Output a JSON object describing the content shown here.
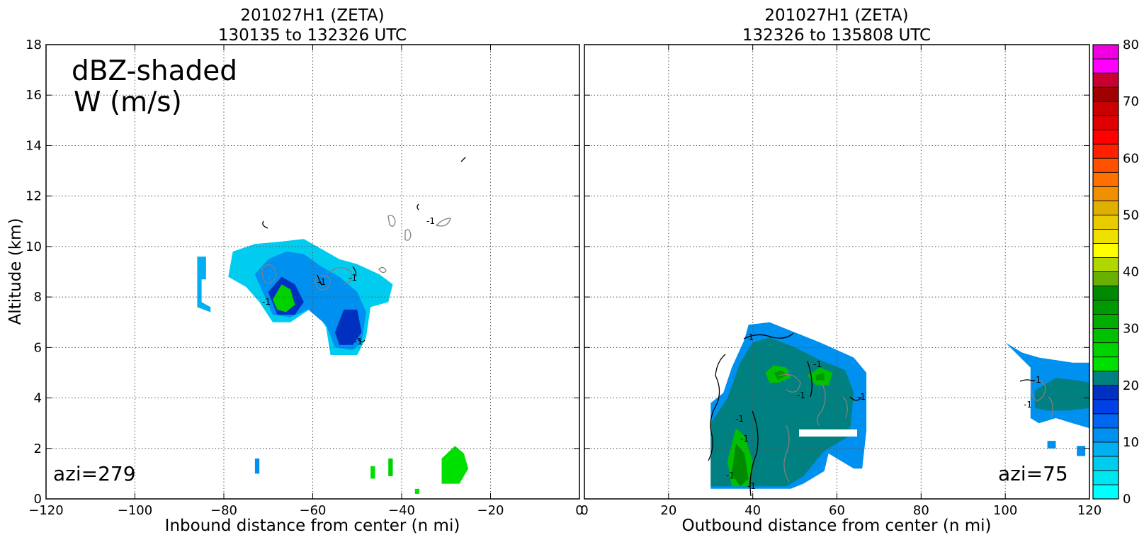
{
  "chart_data": [
    {
      "type": "heatmap",
      "title": "201027H1 (ZETA)",
      "subtitle": "130135 to 132326 UTC",
      "xlabel": "Inbound distance from center (n mi)",
      "ylabel": "Altitude (km)",
      "xlim": [
        -120,
        0
      ],
      "ylim": [
        0,
        18
      ],
      "x_ticks": [
        "−120",
        "−100",
        "−80",
        "−60",
        "−40",
        "−20",
        "0"
      ],
      "y_ticks": [
        "0",
        "2",
        "4",
        "6",
        "8",
        "10",
        "12",
        "14",
        "16",
        "18"
      ],
      "grid": true,
      "annotation_main": "dBZ-shaded",
      "annotation_sub": "W (m/s)",
      "annotation_azi": "azi=279",
      "contour_label": "-1",
      "echo_regions": [
        {
          "dbz": 6,
          "points": [
            [
              -79,
              8.8
            ],
            [
              -78,
              9.8
            ],
            [
              -73,
              10.1
            ],
            [
              -67,
              10.2
            ],
            [
              -62,
              10.3
            ],
            [
              -57,
              9.8
            ],
            [
              -54,
              9.5
            ],
            [
              -50,
              9.3
            ],
            [
              -45,
              8.9
            ],
            [
              -42,
              8.5
            ],
            [
              -43,
              7.8
            ],
            [
              -47,
              7.6
            ],
            [
              -48,
              6.4
            ],
            [
              -50,
              5.7
            ],
            [
              -56,
              5.7
            ],
            [
              -57,
              6.8
            ],
            [
              -60,
              7.6
            ],
            [
              -65,
              7.0
            ],
            [
              -69,
              7.0
            ],
            [
              -72,
              7.8
            ],
            [
              -75,
              8.4
            ]
          ]
        },
        {
          "dbz": 12,
          "points": [
            [
              -73,
              8.9
            ],
            [
              -70,
              9.5
            ],
            [
              -66,
              9.8
            ],
            [
              -62,
              9.7
            ],
            [
              -58,
              9.2
            ],
            [
              -54,
              8.8
            ],
            [
              -50,
              8.2
            ],
            [
              -48,
              7.4
            ],
            [
              -49,
              6.2
            ],
            [
              -51,
              5.9
            ],
            [
              -55,
              6.0
            ],
            [
              -57,
              6.9
            ],
            [
              -61,
              7.5
            ],
            [
              -65,
              7.2
            ],
            [
              -69,
              7.3
            ]
          ]
        },
        {
          "dbz": 18,
          "points": [
            [
              -70,
              8.2
            ],
            [
              -67,
              8.8
            ],
            [
              -64,
              8.5
            ],
            [
              -62,
              7.8
            ],
            [
              -64,
              7.3
            ],
            [
              -68,
              7.3
            ]
          ]
        },
        {
          "dbz": 18,
          "points": [
            [
              -55,
              6.6
            ],
            [
              -53,
              7.5
            ],
            [
              -50,
              7.5
            ],
            [
              -49,
              6.6
            ],
            [
              -51,
              6.1
            ],
            [
              -54,
              6.1
            ]
          ]
        },
        {
          "dbz": 25,
          "points": [
            [
              -69,
              7.9
            ],
            [
              -67,
              8.5
            ],
            [
              -65,
              8.3
            ],
            [
              -64,
              7.7
            ],
            [
              -66,
              7.4
            ],
            [
              -68,
              7.5
            ]
          ]
        },
        {
          "dbz": 8,
          "points": [
            [
              -86,
              9.6
            ],
            [
              -84,
              9.6
            ],
            [
              -84,
              8.7
            ],
            [
              -85,
              8.7
            ],
            [
              -85,
              7.8
            ],
            [
              -83,
              7.6
            ],
            [
              -83,
              7.4
            ],
            [
              -86,
              7.6
            ]
          ]
        },
        {
          "dbz": 12,
          "points": [
            [
              -73,
              1.6
            ],
            [
              -72,
              1.6
            ],
            [
              -72,
              1.0
            ],
            [
              -73,
              1.0
            ]
          ]
        },
        {
          "dbz": 24,
          "points": [
            [
              -47,
              1.3
            ],
            [
              -46,
              1.3
            ],
            [
              -46,
              0.8
            ],
            [
              -47,
              0.8
            ]
          ]
        },
        {
          "dbz": 26,
          "points": [
            [
              -43,
              1.6
            ],
            [
              -42,
              1.6
            ],
            [
              -42,
              0.9
            ],
            [
              -43,
              0.9
            ]
          ]
        },
        {
          "dbz": 24,
          "points": [
            [
              -31,
              1.6
            ],
            [
              -28,
              2.1
            ],
            [
              -26,
              1.8
            ],
            [
              -25,
              1.2
            ],
            [
              -27,
              0.6
            ],
            [
              -31,
              0.6
            ]
          ]
        },
        {
          "dbz": 24,
          "points": [
            [
              -37,
              0.4
            ],
            [
              -36,
              0.4
            ],
            [
              -36,
              0.2
            ],
            [
              -37,
              0.2
            ]
          ]
        }
      ]
    },
    {
      "type": "heatmap",
      "title": "201027H1 (ZETA)",
      "subtitle": "132326 to 135808 UTC",
      "xlabel": "Outbound distance from center (n mi)",
      "ylabel": "",
      "xlim": [
        0,
        120
      ],
      "ylim": [
        0,
        18
      ],
      "x_ticks": [
        "0",
        "20",
        "40",
        "60",
        "80",
        "100",
        "120"
      ],
      "grid": true,
      "annotation_azi": "azi=75",
      "contour_label": "-1",
      "echo_regions": [
        {
          "dbz": 10,
          "points": [
            [
              30,
              3.8
            ],
            [
              33,
              4.2
            ],
            [
              35,
              5.2
            ],
            [
              38,
              6.3
            ],
            [
              39,
              6.9
            ],
            [
              44,
              7.0
            ],
            [
              50,
              6.6
            ],
            [
              56,
              6.2
            ],
            [
              60,
              5.9
            ],
            [
              64,
              5.6
            ],
            [
              67,
              5.0
            ],
            [
              67,
              2.7
            ],
            [
              66,
              1.2
            ],
            [
              64,
              1.2
            ],
            [
              58,
              1.8
            ],
            [
              57,
              1.1
            ],
            [
              52,
              0.6
            ],
            [
              49,
              0.4
            ],
            [
              30,
              0.4
            ]
          ]
        },
        {
          "dbz": 22,
          "points": [
            [
              30,
              3.0
            ],
            [
              34,
              4.0
            ],
            [
              37,
              5.4
            ],
            [
              40,
              6.2
            ],
            [
              44,
              6.4
            ],
            [
              50,
              6.0
            ],
            [
              56,
              5.5
            ],
            [
              62,
              5.1
            ],
            [
              64,
              4.2
            ],
            [
              63,
              2.5
            ],
            [
              57,
              1.9
            ],
            [
              52,
              0.9
            ],
            [
              48,
              0.5
            ],
            [
              30,
              0.5
            ]
          ]
        },
        {
          "dbz": 29,
          "points": [
            [
              43,
              5.0
            ],
            [
              45,
              5.3
            ],
            [
              48,
              5.2
            ],
            [
              49,
              4.8
            ],
            [
              46,
              4.6
            ],
            [
              44,
              4.6
            ]
          ]
        },
        {
          "dbz": 29,
          "points": [
            [
              53,
              4.9
            ],
            [
              56,
              5.2
            ],
            [
              59,
              5.0
            ],
            [
              58,
              4.5
            ],
            [
              55,
              4.5
            ]
          ]
        },
        {
          "dbz": 29,
          "points": [
            [
              36,
              2.8
            ],
            [
              38,
              2.5
            ],
            [
              40,
              1.5
            ],
            [
              39,
              0.5
            ],
            [
              35,
              0.5
            ],
            [
              34,
              1.5
            ]
          ]
        },
        {
          "dbz": 34,
          "points": [
            [
              45,
              5.0
            ],
            [
              47,
              5.1
            ],
            [
              48,
              4.9
            ],
            [
              46,
              4.7
            ]
          ]
        },
        {
          "dbz": 34,
          "points": [
            [
              55,
              4.9
            ],
            [
              57,
              5.0
            ],
            [
              57,
              4.7
            ],
            [
              55,
              4.7
            ]
          ]
        },
        {
          "dbz": 36,
          "points": [
            [
              36,
              2.2
            ],
            [
              38,
              1.8
            ],
            [
              39,
              0.8
            ],
            [
              37,
              0.5
            ],
            [
              35,
              1.0
            ]
          ]
        },
        {
          "dbz": 12,
          "points": [
            [
              100,
              6.2
            ],
            [
              104,
              5.8
            ],
            [
              108,
              5.6
            ],
            [
              112,
              5.5
            ],
            [
              116,
              5.4
            ],
            [
              120,
              5.4
            ],
            [
              120,
              2.8
            ],
            [
              116,
              3.0
            ],
            [
              112,
              3.2
            ],
            [
              108,
              3.0
            ],
            [
              106,
              3.2
            ],
            [
              106,
              5.2
            ]
          ]
        },
        {
          "dbz": 22,
          "points": [
            [
              107,
              4.3
            ],
            [
              112,
              4.8
            ],
            [
              117,
              4.7
            ],
            [
              120,
              4.6
            ],
            [
              120,
              3.6
            ],
            [
              115,
              3.5
            ],
            [
              110,
              3.5
            ],
            [
              107,
              3.6
            ]
          ]
        },
        {
          "dbz": 10,
          "points": [
            [
              110,
              2.3
            ],
            [
              112,
              2.3
            ],
            [
              112,
              2.0
            ],
            [
              110,
              2.0
            ]
          ]
        },
        {
          "dbz": 10,
          "points": [
            [
              117,
              2.1
            ],
            [
              119,
              2.1
            ],
            [
              119,
              1.7
            ],
            [
              117,
              1.7
            ]
          ]
        }
      ]
    }
  ],
  "colorbar": {
    "min": 0,
    "max": 80,
    "step": 2.5,
    "tick_labels": [
      "0",
      "10",
      "20",
      "30",
      "40",
      "50",
      "60",
      "70",
      "80"
    ],
    "colors": [
      "#00ffff",
      "#00e6f0",
      "#00ccf0",
      "#00b0f0",
      "#0090f0",
      "#0068f0",
      "#0040e8",
      "#0030c0",
      "#008080",
      "#00e000",
      "#00d200",
      "#00c000",
      "#00ad00",
      "#009a00",
      "#008a00",
      "#6ab000",
      "#b0d800",
      "#ffff00",
      "#f0e000",
      "#e8cc00",
      "#e0b000",
      "#f09000",
      "#ff7000",
      "#ff5000",
      "#ff2000",
      "#ff0000",
      "#e00000",
      "#c80000",
      "#a00000",
      "#c80032",
      "#ff00ff",
      "#f000e0",
      "#d040e0",
      "#b050d0",
      "#8c3c9a",
      "#5a2a5a",
      "#000000"
    ]
  }
}
